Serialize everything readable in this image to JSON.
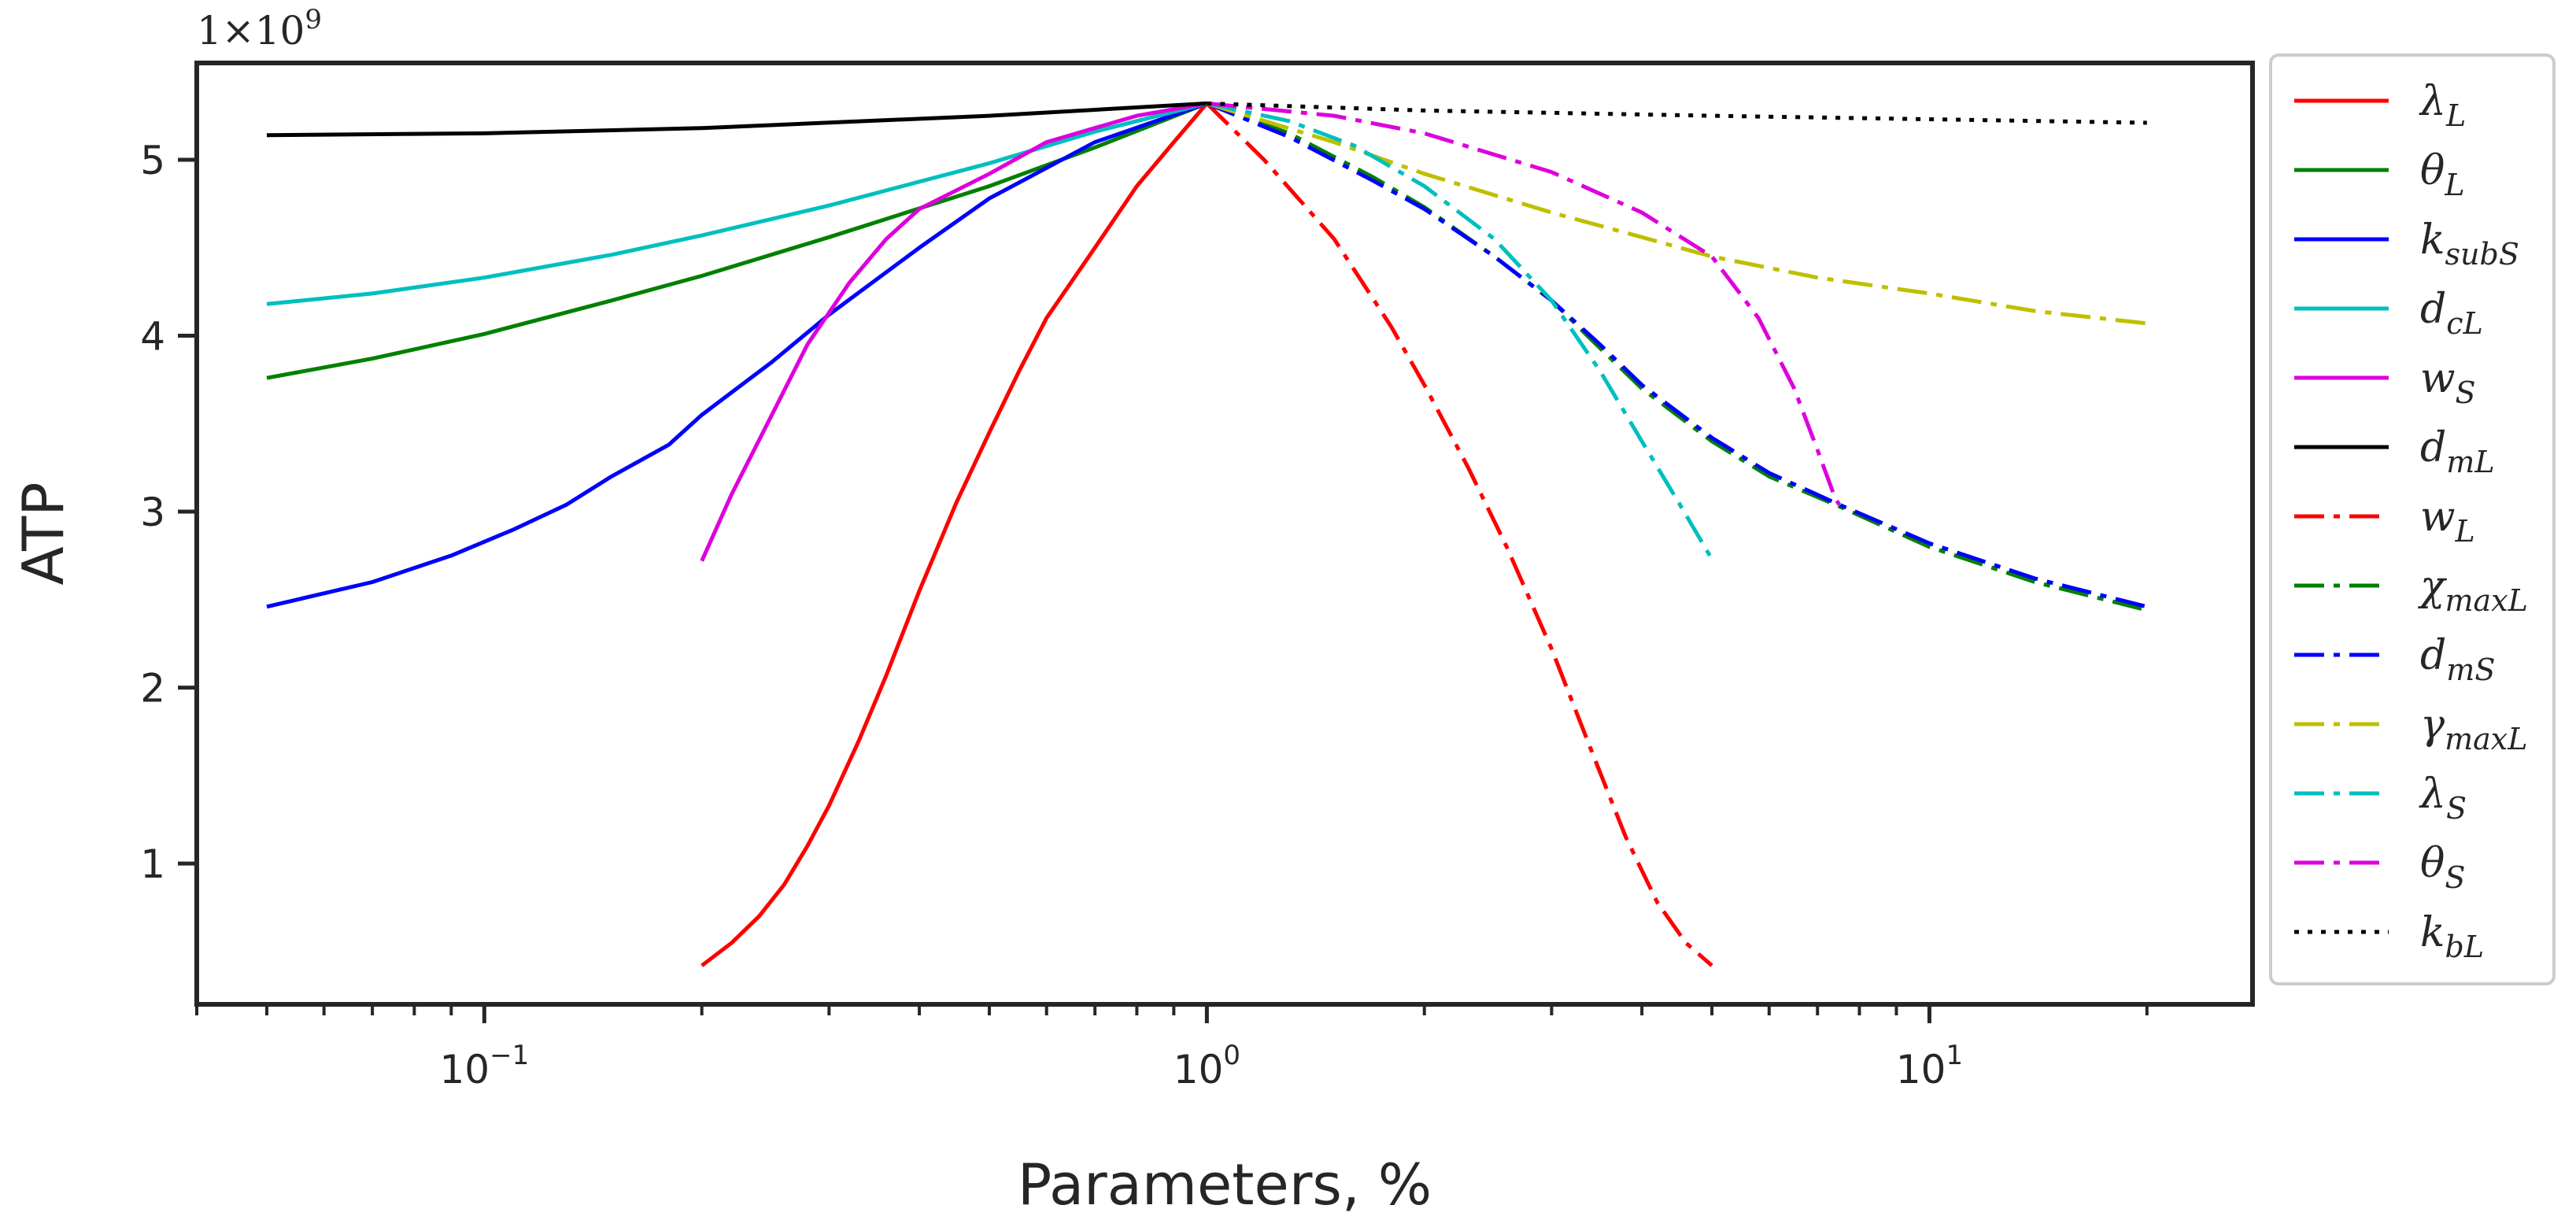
{
  "chart_data": {
    "type": "line",
    "title": "",
    "xlabel": "Parameters, %",
    "ylabel": "ATP",
    "xscale": "log",
    "xlim": [
      0.04,
      28
    ],
    "ylim": [
      0.2,
      5.55
    ],
    "y_multiplier": {
      "base": "1×10",
      "exponent": "9"
    },
    "x_ticks": [
      {
        "value": 0.1,
        "base": "10",
        "exponent": "−1"
      },
      {
        "value": 1,
        "base": "10",
        "exponent": "0"
      },
      {
        "value": 10,
        "base": "10",
        "exponent": "1"
      }
    ],
    "y_ticks": [
      1,
      2,
      3,
      4,
      5
    ],
    "legend_position": "outside-right",
    "series": [
      {
        "id": "lambda-l",
        "symbol": "λ",
        "sub": "L",
        "color": "#ff0000",
        "style": "solid",
        "points": [
          [
            0.2,
            0.42
          ],
          [
            0.22,
            0.55
          ],
          [
            0.24,
            0.7
          ],
          [
            0.26,
            0.88
          ],
          [
            0.28,
            1.1
          ],
          [
            0.3,
            1.33
          ],
          [
            0.33,
            1.7
          ],
          [
            0.36,
            2.07
          ],
          [
            0.4,
            2.55
          ],
          [
            0.45,
            3.05
          ],
          [
            0.5,
            3.45
          ],
          [
            0.55,
            3.8
          ],
          [
            0.6,
            4.1
          ],
          [
            0.7,
            4.5
          ],
          [
            0.8,
            4.85
          ],
          [
            0.9,
            5.1
          ],
          [
            1.0,
            5.32
          ]
        ]
      },
      {
        "id": "theta-l",
        "symbol": "θ",
        "sub": "L",
        "color": "#008000",
        "style": "solid",
        "points": [
          [
            0.05,
            3.76
          ],
          [
            0.07,
            3.87
          ],
          [
            0.1,
            4.01
          ],
          [
            0.15,
            4.2
          ],
          [
            0.2,
            4.34
          ],
          [
            0.3,
            4.56
          ],
          [
            0.5,
            4.85
          ],
          [
            0.7,
            5.07
          ],
          [
            1.0,
            5.32
          ]
        ]
      },
      {
        "id": "k-subs",
        "symbol": "k",
        "sub": "subS",
        "color": "#0000ff",
        "style": "solid",
        "points": [
          [
            0.05,
            2.46
          ],
          [
            0.07,
            2.6
          ],
          [
            0.09,
            2.75
          ],
          [
            0.11,
            2.9
          ],
          [
            0.13,
            3.04
          ],
          [
            0.15,
            3.2
          ],
          [
            0.18,
            3.38
          ],
          [
            0.2,
            3.55
          ],
          [
            0.25,
            3.85
          ],
          [
            0.3,
            4.12
          ],
          [
            0.4,
            4.5
          ],
          [
            0.5,
            4.78
          ],
          [
            0.7,
            5.1
          ],
          [
            1.0,
            5.32
          ]
        ]
      },
      {
        "id": "d-cl",
        "symbol": "d",
        "sub": "cL",
        "color": "#00bfbf",
        "style": "solid",
        "points": [
          [
            0.05,
            4.18
          ],
          [
            0.07,
            4.24
          ],
          [
            0.1,
            4.33
          ],
          [
            0.15,
            4.46
          ],
          [
            0.2,
            4.57
          ],
          [
            0.3,
            4.74
          ],
          [
            0.5,
            4.98
          ],
          [
            0.7,
            5.16
          ],
          [
            1.0,
            5.32
          ]
        ]
      },
      {
        "id": "w-s",
        "symbol": "w",
        "sub": "S",
        "color": "#dd00dd",
        "style": "solid",
        "points": [
          [
            0.2,
            2.72
          ],
          [
            0.22,
            3.1
          ],
          [
            0.25,
            3.55
          ],
          [
            0.28,
            3.95
          ],
          [
            0.32,
            4.3
          ],
          [
            0.36,
            4.55
          ],
          [
            0.4,
            4.72
          ],
          [
            0.5,
            4.92
          ],
          [
            0.6,
            5.1
          ],
          [
            0.8,
            5.25
          ],
          [
            1.0,
            5.32
          ]
        ]
      },
      {
        "id": "d-ml",
        "symbol": "d",
        "sub": "mL",
        "color": "#000000",
        "style": "solid",
        "points": [
          [
            0.05,
            5.14
          ],
          [
            0.1,
            5.15
          ],
          [
            0.2,
            5.18
          ],
          [
            0.5,
            5.25
          ],
          [
            1.0,
            5.32
          ]
        ]
      },
      {
        "id": "w-l",
        "symbol": "w",
        "sub": "L",
        "color": "#ff0000",
        "style": "dashdot",
        "points": [
          [
            1.0,
            5.32
          ],
          [
            1.2,
            5.0
          ],
          [
            1.5,
            4.55
          ],
          [
            1.8,
            4.05
          ],
          [
            2.0,
            3.72
          ],
          [
            2.3,
            3.25
          ],
          [
            2.6,
            2.8
          ],
          [
            3.0,
            2.22
          ],
          [
            3.4,
            1.65
          ],
          [
            3.8,
            1.15
          ],
          [
            4.2,
            0.78
          ],
          [
            4.6,
            0.55
          ],
          [
            5.0,
            0.42
          ]
        ]
      },
      {
        "id": "chi-maxl",
        "symbol": "χ",
        "sub": "maxL",
        "color": "#008000",
        "style": "dashdot",
        "points": [
          [
            1.0,
            5.32
          ],
          [
            1.3,
            5.15
          ],
          [
            1.7,
            4.9
          ],
          [
            2.0,
            4.73
          ],
          [
            2.5,
            4.45
          ],
          [
            3.0,
            4.2
          ],
          [
            3.5,
            3.93
          ],
          [
            4.0,
            3.7
          ],
          [
            5.0,
            3.4
          ],
          [
            6.0,
            3.2
          ],
          [
            7.5,
            3.03
          ],
          [
            10,
            2.8
          ],
          [
            14,
            2.6
          ],
          [
            20,
            2.44
          ]
        ]
      },
      {
        "id": "d-ms",
        "symbol": "d",
        "sub": "mS",
        "color": "#0000ff",
        "style": "dashdot",
        "points": [
          [
            1.0,
            5.32
          ],
          [
            1.3,
            5.13
          ],
          [
            1.7,
            4.88
          ],
          [
            2.0,
            4.72
          ],
          [
            2.5,
            4.45
          ],
          [
            3.0,
            4.2
          ],
          [
            3.5,
            3.95
          ],
          [
            4.0,
            3.72
          ],
          [
            5.0,
            3.42
          ],
          [
            6.0,
            3.22
          ],
          [
            7.5,
            3.04
          ],
          [
            10,
            2.82
          ],
          [
            14,
            2.62
          ],
          [
            20,
            2.46
          ]
        ]
      },
      {
        "id": "gamma-maxl",
        "symbol": "γ",
        "sub": "maxL",
        "color": "#bfbf00",
        "style": "dashdot",
        "points": [
          [
            1.0,
            5.32
          ],
          [
            1.5,
            5.1
          ],
          [
            2.0,
            4.92
          ],
          [
            3.0,
            4.7
          ],
          [
            4.0,
            4.56
          ],
          [
            5.0,
            4.45
          ],
          [
            7.0,
            4.33
          ],
          [
            10,
            4.24
          ],
          [
            14,
            4.14
          ],
          [
            20,
            4.07
          ]
        ]
      },
      {
        "id": "lambda-s",
        "symbol": "λ",
        "sub": "S",
        "color": "#00bfbf",
        "style": "dashdot",
        "points": [
          [
            1.0,
            5.32
          ],
          [
            1.3,
            5.22
          ],
          [
            1.6,
            5.08
          ],
          [
            2.0,
            4.85
          ],
          [
            2.5,
            4.55
          ],
          [
            3.0,
            4.2
          ],
          [
            3.5,
            3.8
          ],
          [
            4.0,
            3.4
          ],
          [
            4.5,
            3.05
          ],
          [
            5.0,
            2.73
          ]
        ]
      },
      {
        "id": "theta-s",
        "symbol": "θ",
        "sub": "S",
        "color": "#dd00dd",
        "style": "dashdot",
        "points": [
          [
            1.0,
            5.32
          ],
          [
            1.5,
            5.25
          ],
          [
            2.0,
            5.15
          ],
          [
            3.0,
            4.93
          ],
          [
            4.0,
            4.7
          ],
          [
            5.0,
            4.45
          ],
          [
            5.8,
            4.1
          ],
          [
            6.5,
            3.7
          ],
          [
            7.0,
            3.35
          ],
          [
            7.4,
            3.08
          ],
          [
            7.5,
            3.04
          ]
        ]
      },
      {
        "id": "k-bl",
        "symbol": "k",
        "sub": "bL",
        "color": "#000000",
        "style": "dotted",
        "points": [
          [
            1.0,
            5.32
          ],
          [
            2.0,
            5.28
          ],
          [
            5.0,
            5.25
          ],
          [
            10,
            5.23
          ],
          [
            20,
            5.21
          ]
        ]
      }
    ]
  }
}
